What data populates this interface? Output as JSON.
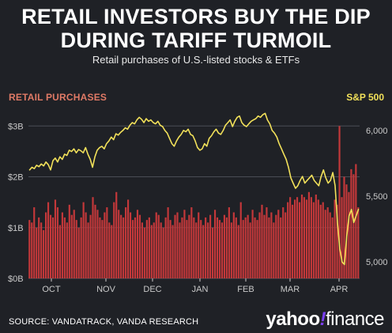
{
  "header": {
    "title_line1": "RETAIL INVESTORS BUY THE DIP",
    "title_line2": "DURING TARIFF TURMOIL",
    "subtitle": "Retail purchases of U.S.-listed stocks & ETFs"
  },
  "footer": {
    "source": "SOURCE: VANDATRACK, VANDA RESEARCH",
    "brand_yahoo": "yahoo",
    "brand_bang": "!",
    "brand_finance": "finance"
  },
  "colors": {
    "background": "#1f2126",
    "bars": "#c4383a",
    "line": "#f2e15a",
    "left_label": "#e07a66",
    "grid": "#4a4d55",
    "tick": "#c9c9c9"
  },
  "chart_data": {
    "type": "bar+line",
    "left_axis_label": "RETAIL PURCHASES",
    "right_axis_label": "S&P 500",
    "x_tick_labels": [
      "OCT",
      "NOV",
      "DEC",
      "JAN",
      "FEB",
      "MAR",
      "APR"
    ],
    "y_left": {
      "ticks": [
        "$0B",
        "$1B",
        "$2B",
        "$3B"
      ],
      "values": [
        0,
        1,
        2,
        3
      ],
      "range": [
        0,
        3.3
      ]
    },
    "y_right": {
      "ticks": [
        "5,000",
        "5,500",
        "6,000"
      ],
      "values": [
        5000,
        5500,
        6000
      ],
      "range": [
        4875,
        6150
      ]
    },
    "bars_retail_purchases_billion": [
      1.15,
      1.1,
      1.4,
      1.0,
      1.2,
      1.1,
      0.95,
      1.3,
      1.5,
      1.25,
      1.2,
      1.55,
      1.4,
      1.05,
      1.3,
      1.2,
      1.1,
      1.45,
      1.25,
      1.35,
      1.15,
      1.0,
      1.2,
      1.5,
      1.3,
      1.1,
      1.25,
      1.6,
      1.45,
      1.35,
      1.2,
      1.15,
      1.3,
      1.4,
      1.1,
      1.05,
      1.5,
      1.7,
      1.35,
      1.25,
      1.2,
      1.4,
      1.55,
      1.3,
      1.15,
      1.2,
      1.35,
      1.25,
      1.1,
      1.0,
      1.15,
      1.2,
      1.05,
      1.1,
      1.3,
      1.25,
      1.1,
      1.0,
      1.2,
      1.4,
      1.15,
      1.05,
      1.25,
      1.3,
      1.1,
      1.2,
      1.35,
      1.15,
      1.25,
      1.4,
      1.2,
      1.1,
      1.3,
      1.15,
      1.05,
      1.2,
      1.1,
      1.25,
      1.0,
      1.35,
      1.2,
      1.15,
      1.1,
      1.25,
      1.2,
      1.4,
      1.1,
      1.3,
      1.2,
      1.05,
      1.5,
      1.15,
      1.2,
      1.25,
      1.1,
      1.35,
      1.2,
      1.15,
      1.3,
      1.45,
      1.25,
      1.4,
      1.2,
      1.3,
      1.1,
      1.25,
      1.35,
      1.2,
      1.4,
      1.3,
      1.5,
      1.6,
      1.45,
      1.55,
      1.6,
      1.5,
      1.65,
      1.6,
      1.55,
      1.7,
      1.6,
      1.5,
      1.65,
      1.55,
      1.45,
      1.5,
      1.35,
      1.4,
      1.3,
      1.2,
      1.55,
      1.45,
      3.0,
      1.6,
      2.0,
      1.85,
      1.7,
      2.15,
      2.05,
      2.25,
      1.4
    ],
    "sp500_line": [
      5700,
      5720,
      5710,
      5735,
      5725,
      5745,
      5730,
      5760,
      5740,
      5700,
      5770,
      5790,
      5760,
      5800,
      5780,
      5820,
      5810,
      5850,
      5840,
      5860,
      5830,
      5855,
      5845,
      5830,
      5870,
      5820,
      5780,
      5720,
      5800,
      5850,
      5870,
      5880,
      5860,
      5900,
      5920,
      5950,
      5930,
      5975,
      5965,
      5985,
      6000,
      6020,
      6010,
      6040,
      6060,
      6050,
      6080,
      6100,
      6085,
      6060,
      6090,
      6070,
      6080,
      6060,
      6050,
      6070,
      6040,
      6030,
      6000,
      5980,
      5940,
      5900,
      5880,
      5920,
      5950,
      5970,
      6000,
      5990,
      6010,
      5970,
      5960,
      5920,
      5870,
      5850,
      5860,
      5900,
      5880,
      5940,
      5960,
      5990,
      6010,
      5980,
      5970,
      6000,
      6040,
      6060,
      6080,
      6030,
      6070,
      6100,
      6110,
      6060,
      6040,
      6030,
      6050,
      6070,
      6080,
      6090,
      6110,
      6100,
      6120,
      6130,
      6080,
      6050,
      6000,
      5980,
      5950,
      5900,
      5860,
      5820,
      5780,
      5720,
      5640,
      5600,
      5560,
      5580,
      5620,
      5650,
      5600,
      5620,
      5640,
      5660,
      5620,
      5600,
      5580,
      5650,
      5700,
      5640,
      5600,
      5620,
      5680,
      5580,
      5300,
      5100,
      5000,
      4980,
      5200,
      5350,
      5400,
      5300,
      5350,
      5400
    ]
  }
}
